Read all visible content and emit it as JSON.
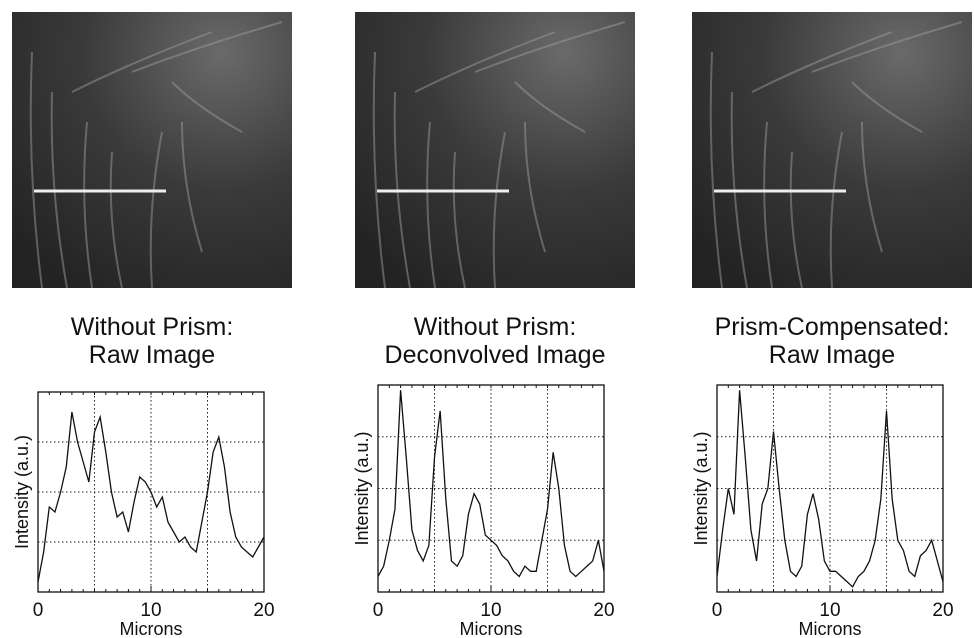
{
  "chart_data": [
    {
      "type": "line",
      "title": "Without Prism:",
      "subtitle": "Raw Image",
      "xlabel": "Microns",
      "ylabel": "Intensity (a.u.)",
      "x": [
        0,
        0.5,
        1,
        1.5,
        2,
        2.5,
        3,
        3.5,
        4,
        4.5,
        5,
        5.5,
        6,
        6.5,
        7,
        7.5,
        8,
        8.5,
        9,
        9.5,
        10,
        10.5,
        11,
        11.5,
        12,
        12.5,
        13,
        13.5,
        14,
        14.5,
        15,
        15.5,
        16,
        16.5,
        17,
        17.5,
        18,
        18.5,
        19,
        19.5,
        20
      ],
      "series": [
        {
          "color": "#111111",
          "values": [
            0.2,
            0.8,
            1.7,
            1.6,
            2.0,
            2.5,
            3.6,
            3.0,
            2.6,
            2.2,
            3.2,
            3.5,
            2.8,
            2.0,
            1.5,
            1.6,
            1.2,
            1.8,
            2.3,
            2.2,
            2.0,
            1.7,
            1.9,
            1.4,
            1.2,
            1.0,
            1.1,
            0.9,
            0.8,
            1.4,
            2.0,
            2.8,
            3.1,
            2.5,
            1.6,
            1.1,
            0.9,
            0.8,
            0.7,
            0.9,
            1.1
          ]
        }
      ],
      "xlim": [
        0,
        20
      ],
      "xticks": [
        0,
        10,
        20
      ],
      "xgrid": [
        5,
        10,
        15
      ],
      "ylim": [
        0,
        4
      ],
      "ygrid": [
        1,
        2,
        3
      ]
    },
    {
      "type": "line",
      "title": "Without Prism:",
      "subtitle": "Deconvolved Image",
      "xlabel": "Microns",
      "ylabel": "Intensity (a.u.)",
      "x": [
        0,
        0.5,
        1,
        1.5,
        2,
        2.5,
        3,
        3.5,
        4,
        4.5,
        5,
        5.5,
        6,
        6.5,
        7,
        7.5,
        8,
        8.5,
        9,
        9.5,
        10,
        10.5,
        11,
        11.5,
        12,
        12.5,
        13,
        13.5,
        14,
        14.5,
        15,
        15.5,
        16,
        16.5,
        17,
        17.5,
        18,
        18.5,
        19,
        19.5,
        20
      ],
      "series": [
        {
          "color": "#111111",
          "values": [
            0.3,
            0.5,
            1.0,
            1.6,
            3.9,
            2.6,
            1.2,
            0.8,
            0.6,
            0.9,
            2.6,
            3.5,
            1.8,
            0.6,
            0.5,
            0.7,
            1.5,
            1.9,
            1.7,
            1.1,
            1.0,
            0.9,
            0.7,
            0.6,
            0.4,
            0.3,
            0.5,
            0.4,
            0.4,
            1.0,
            1.6,
            2.7,
            2.0,
            0.9,
            0.4,
            0.3,
            0.4,
            0.5,
            0.6,
            1.0,
            0.4
          ]
        }
      ],
      "xlim": [
        0,
        20
      ],
      "xticks": [
        0,
        10,
        20
      ],
      "xgrid": [
        5,
        10,
        15
      ],
      "ylim": [
        0,
        4
      ],
      "ygrid": [
        1,
        2,
        3
      ]
    },
    {
      "type": "line",
      "title": "Prism-Compensated:",
      "subtitle": "Raw Image",
      "xlabel": "Microns",
      "ylabel": "Intensity (a.u.)",
      "x": [
        0,
        0.5,
        1,
        1.5,
        2,
        2.5,
        3,
        3.5,
        4,
        4.5,
        5,
        5.5,
        6,
        6.5,
        7,
        7.5,
        8,
        8.5,
        9,
        9.5,
        10,
        10.5,
        11,
        11.5,
        12,
        12.5,
        13,
        13.5,
        14,
        14.5,
        15,
        15.5,
        16,
        16.5,
        17,
        17.5,
        18,
        18.5,
        19,
        19.5,
        20
      ],
      "series": [
        {
          "color": "#111111",
          "values": [
            0.3,
            1.2,
            2.0,
            1.5,
            3.9,
            2.6,
            1.2,
            0.6,
            1.7,
            2.0,
            3.1,
            2.0,
            1.0,
            0.4,
            0.3,
            0.5,
            1.5,
            1.9,
            1.4,
            0.6,
            0.4,
            0.4,
            0.3,
            0.2,
            0.1,
            0.3,
            0.4,
            0.6,
            1.0,
            1.8,
            3.5,
            1.8,
            1.0,
            0.8,
            0.4,
            0.3,
            0.7,
            0.8,
            1.0,
            0.6,
            0.2
          ]
        }
      ],
      "xlim": [
        0,
        20
      ],
      "xticks": [
        0,
        10,
        20
      ],
      "xgrid": [
        5,
        10,
        15
      ],
      "ylim": [
        0,
        4
      ],
      "ygrid": [
        1,
        2,
        3
      ]
    }
  ]
}
